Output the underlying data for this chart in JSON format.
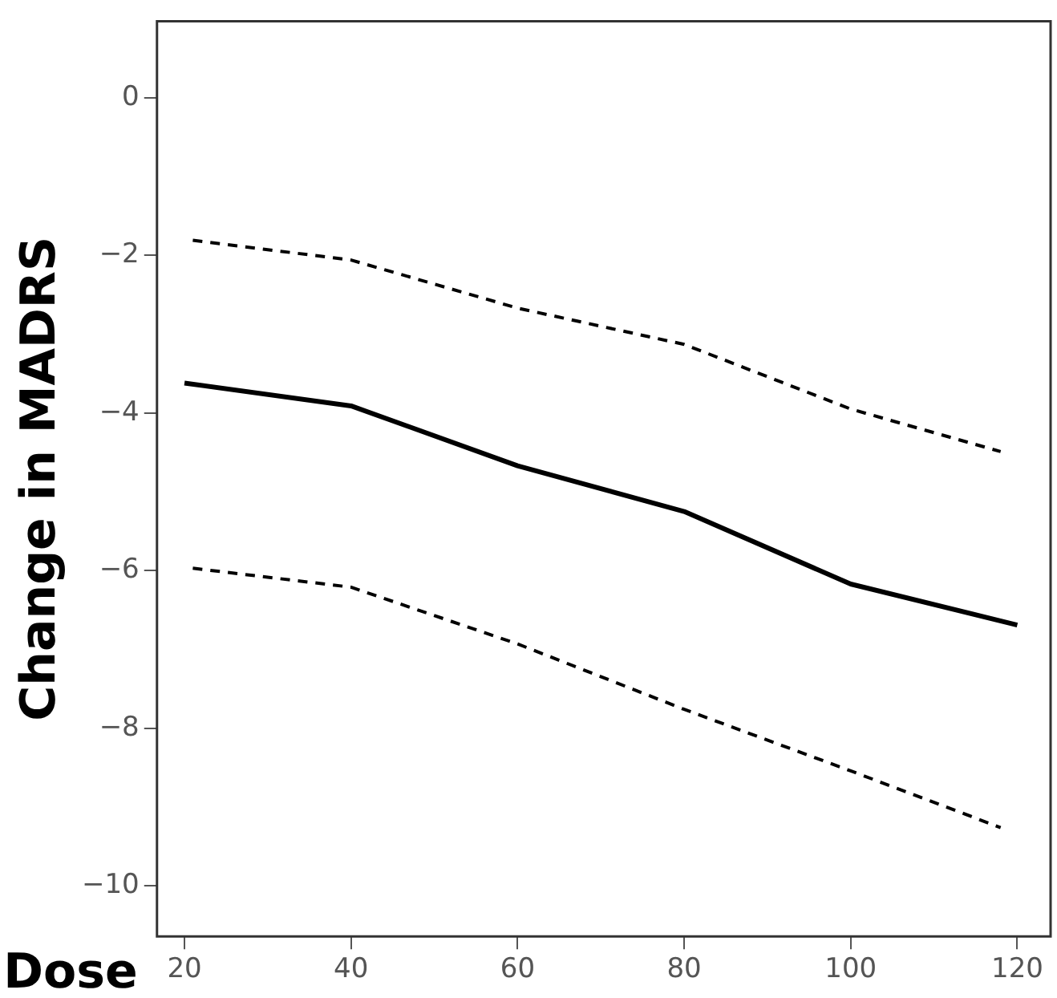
{
  "chart_data": {
    "type": "line",
    "xlabel": "Dose",
    "ylabel": "Change in MADRS",
    "xlim": [
      16.7,
      124
    ],
    "ylim": [
      -10.64,
      0.97
    ],
    "xticks": [
      20,
      40,
      60,
      80,
      100,
      120
    ],
    "yticks": [
      -10,
      -8,
      -6,
      -4,
      -2,
      0
    ],
    "grid": false,
    "legend": false,
    "marker": "none",
    "series": [
      {
        "color": "#000000",
        "line_style": "solid",
        "x": [
          20,
          40,
          60,
          80,
          100,
          120
        ],
        "values": [
          -3.62,
          -3.91,
          -4.67,
          -5.25,
          -6.17,
          -6.69
        ]
      },
      {
        "color": "#000000",
        "line_style": "dashed",
        "x": [
          21,
          40,
          60,
          80,
          100,
          118
        ],
        "values": [
          -1.81,
          -2.06,
          -2.67,
          -3.13,
          -3.95,
          -4.49
        ]
      },
      {
        "color": "#000000",
        "line_style": "dashed",
        "x": [
          21,
          40,
          60,
          80,
          100,
          118
        ],
        "values": [
          -5.97,
          -6.21,
          -6.93,
          -7.76,
          -8.54,
          -9.26
        ]
      }
    ]
  }
}
